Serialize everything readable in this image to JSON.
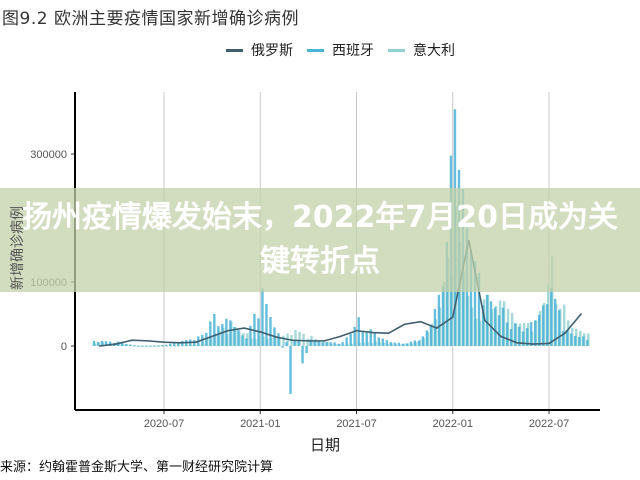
{
  "chart_data": {
    "type": "line",
    "title": "图9.2 欧洲主要疫情国家新增确诊病例",
    "xlabel": "日期",
    "ylabel": "新增确诊病例",
    "ylim": [
      -100000,
      395000
    ],
    "yticks": [
      0,
      100000,
      300000
    ],
    "ytick_labels": [
      "0",
      "100000",
      "300000"
    ],
    "xticks": [
      "2020-07",
      "2021-01",
      "2021-07",
      "2022-01",
      "2022-07"
    ],
    "x": [
      "2020-03",
      "2020-04",
      "2020-05",
      "2020-06",
      "2020-07",
      "2020-08",
      "2020-09",
      "2020-10",
      "2020-11",
      "2020-12",
      "2021-01",
      "2021-02",
      "2021-03",
      "2021-04",
      "2021-05",
      "2021-06",
      "2021-07",
      "2021-08",
      "2021-09",
      "2021-10",
      "2021-11",
      "2021-12",
      "2022-01",
      "2022-02",
      "2022-03",
      "2022-04",
      "2022-05",
      "2022-06",
      "2022-07",
      "2022-08",
      "2022-09"
    ],
    "legend_position": "top",
    "grid": "vertical",
    "series": [
      {
        "name": "俄罗斯",
        "style": "line",
        "color": "#3f5f6f",
        "values": [
          0,
          3000,
          9000,
          8000,
          6000,
          5000,
          6000,
          15000,
          24000,
          28000,
          22000,
          14000,
          9000,
          8000,
          8000,
          15000,
          24000,
          21000,
          20000,
          34000,
          38000,
          28000,
          45000,
          165000,
          40000,
          15000,
          5000,
          3000,
          4000,
          20000,
          50000
        ]
      },
      {
        "name": "西班牙",
        "style": "bar",
        "color": "#4ab3d6",
        "values": [
          8000,
          7000,
          1000,
          500,
          2000,
          8000,
          15000,
          50000,
          40000,
          12000,
          90000,
          20000,
          -75000,
          10000,
          6000,
          6000,
          45000,
          20000,
          6000,
          4000,
          15000,
          80000,
          370000,
          150000,
          80000,
          60000,
          30000,
          40000,
          90000,
          25000,
          15000
        ]
      },
      {
        "name": "意大利",
        "style": "bar",
        "color": "#8fd0d0",
        "values": [
          6000,
          5000,
          1000,
          300,
          300,
          1000,
          2000,
          20000,
          38000,
          20000,
          15000,
          14000,
          25000,
          16000,
          6000,
          2000,
          5000,
          7000,
          4000,
          4000,
          12000,
          60000,
          220000,
          60000,
          80000,
          70000,
          35000,
          40000,
          140000,
          40000,
          20000
        ]
      }
    ]
  },
  "source": "来源：约翰霍普金斯大学、第一财经研究院计算",
  "banner": {
    "headline": "扬州疫情爆发始末，2022年7月20日成为关键转折点"
  }
}
